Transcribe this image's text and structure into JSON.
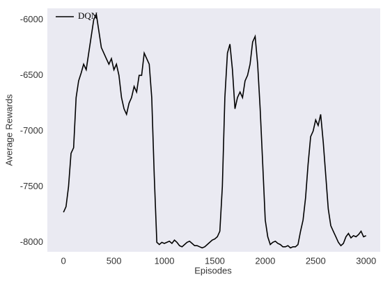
{
  "chart_data": {
    "type": "line",
    "xlabel": "Episodes",
    "ylabel": "Average Rewards",
    "x": [
      0,
      25,
      50,
      75,
      100,
      125,
      150,
      175,
      200,
      225,
      250,
      275,
      300,
      325,
      350,
      375,
      400,
      425,
      450,
      475,
      500,
      525,
      550,
      575,
      600,
      625,
      650,
      675,
      700,
      725,
      750,
      775,
      800,
      825,
      850,
      875,
      900,
      925,
      950,
      975,
      1000,
      1025,
      1050,
      1075,
      1100,
      1125,
      1150,
      1175,
      1200,
      1225,
      1250,
      1275,
      1300,
      1325,
      1350,
      1375,
      1400,
      1425,
      1450,
      1475,
      1500,
      1525,
      1550,
      1575,
      1600,
      1625,
      1650,
      1675,
      1700,
      1725,
      1750,
      1775,
      1800,
      1825,
      1850,
      1875,
      1900,
      1925,
      1950,
      1975,
      2000,
      2025,
      2050,
      2075,
      2100,
      2125,
      2150,
      2175,
      2200,
      2225,
      2250,
      2275,
      2300,
      2325,
      2350,
      2375,
      2400,
      2425,
      2450,
      2475,
      2500,
      2525,
      2550,
      2575,
      2600,
      2625,
      2650,
      2675,
      2700,
      2725,
      2750,
      2775,
      2800,
      2825,
      2850,
      2875,
      2900,
      2925,
      2950,
      2975,
      3000
    ],
    "series": [
      {
        "name": "DQN",
        "color": "#000000",
        "values": [
          -7730,
          -7680,
          -7500,
          -7200,
          -7150,
          -6700,
          -6550,
          -6480,
          -6400,
          -6450,
          -6300,
          -6150,
          -6000,
          -5950,
          -6100,
          -6250,
          -6300,
          -6350,
          -6400,
          -6350,
          -6450,
          -6400,
          -6500,
          -6700,
          -6800,
          -6850,
          -6750,
          -6700,
          -6600,
          -6650,
          -6500,
          -6500,
          -6300,
          -6350,
          -6400,
          -6700,
          -7400,
          -8000,
          -8020,
          -8000,
          -8010,
          -8000,
          -7990,
          -8010,
          -7980,
          -8000,
          -8030,
          -8040,
          -8020,
          -8000,
          -7990,
          -8010,
          -8030,
          -8030,
          -8040,
          -8050,
          -8040,
          -8020,
          -8000,
          -7980,
          -7970,
          -7950,
          -7900,
          -7500,
          -6700,
          -6300,
          -6220,
          -6450,
          -6800,
          -6700,
          -6650,
          -6700,
          -6550,
          -6500,
          -6400,
          -6200,
          -6150,
          -6400,
          -6800,
          -7300,
          -7800,
          -7950,
          -8020,
          -8000,
          -7990,
          -8010,
          -8020,
          -8040,
          -8040,
          -8030,
          -8050,
          -8040,
          -8040,
          -8020,
          -7900,
          -7800,
          -7600,
          -7300,
          -7050,
          -7000,
          -6900,
          -6950,
          -6850,
          -7100,
          -7400,
          -7700,
          -7850,
          -7900,
          -7950,
          -8000,
          -8030,
          -8010,
          -7950,
          -7920,
          -7960,
          -7940,
          -7950,
          -7930,
          -7900,
          -7950,
          -7940
        ]
      }
    ],
    "xlim": [
      -160,
      3140
    ],
    "ylim": [
      -8085,
      -5898
    ],
    "xticks": [
      0,
      500,
      1000,
      1500,
      2000,
      2500,
      3000
    ],
    "yticks": [
      -8000,
      -7500,
      -7000,
      -6500,
      -6000
    ],
    "grid": false,
    "legend": "upper left",
    "background": "#eaeaf2"
  }
}
